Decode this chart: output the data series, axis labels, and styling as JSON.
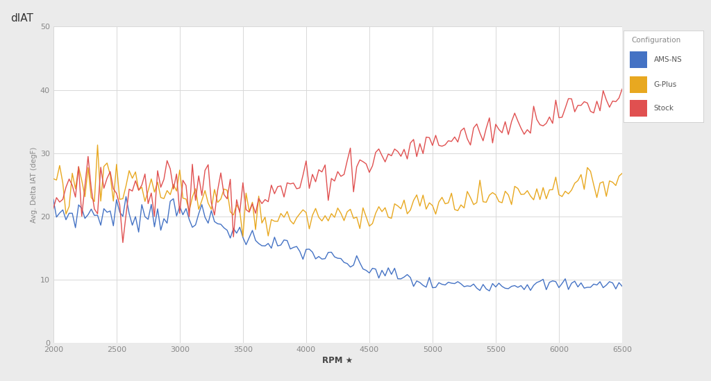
{
  "title": "dIAT",
  "xlabel": "RPM ★",
  "ylabel": "Avg. Delta IAT (degF)",
  "xlim": [
    2000,
    6500
  ],
  "ylim": [
    0,
    50
  ],
  "yticks": [
    0,
    10,
    20,
    30,
    40,
    50
  ],
  "xticks": [
    2000,
    2500,
    3000,
    3500,
    4000,
    4500,
    5000,
    5500,
    6000,
    6500
  ],
  "legend_title": "Configuration",
  "legend_labels": [
    "AMS-NS",
    "G-Plus",
    "Stock"
  ],
  "colors": {
    "AMS-NS": "#4472C4",
    "G-Plus": "#E8A820",
    "Stock": "#E05050"
  },
  "background_color": "#EBEBEB",
  "plot_bg_color": "#FFFFFF",
  "grid_color": "#D8D8D8",
  "seed": 7
}
